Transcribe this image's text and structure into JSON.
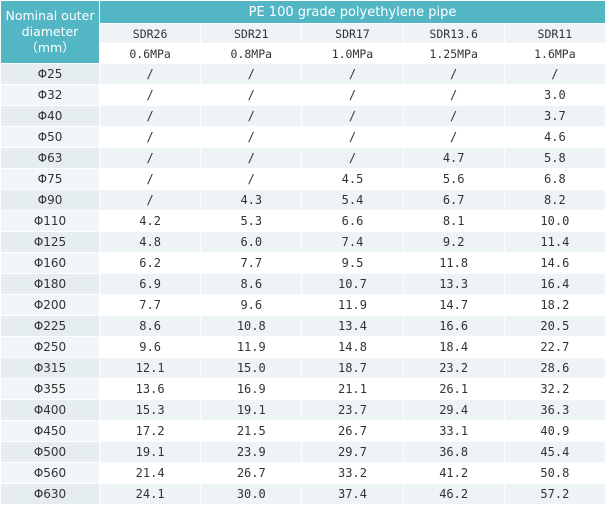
{
  "header": {
    "corner_label": "Nominal outer diameter（mm）",
    "group_label": "PE 100 grade polyethylene pipe",
    "sdr_labels": [
      "SDR26",
      "SDR21",
      "SDR17",
      "SDR13.6",
      "SDR11"
    ],
    "pressure_labels": [
      "0.6MPa",
      "0.8MPa",
      "1.0MPa",
      "1.25MPa",
      "1.6MPa"
    ]
  },
  "rows": [
    {
      "diameter": "Φ25",
      "values": [
        "/",
        "/",
        "/",
        "/",
        "/"
      ]
    },
    {
      "diameter": "Φ32",
      "values": [
        "/",
        "/",
        "/",
        "/",
        "3.0"
      ]
    },
    {
      "diameter": "Φ40",
      "values": [
        "/",
        "/",
        "/",
        "/",
        "3.7"
      ]
    },
    {
      "diameter": "Φ50",
      "values": [
        "/",
        "/",
        "/",
        "/",
        "4.6"
      ]
    },
    {
      "diameter": "Φ63",
      "values": [
        "/",
        "/",
        "/",
        "4.7",
        "5.8"
      ]
    },
    {
      "diameter": "Φ75",
      "values": [
        "/",
        "/",
        "4.5",
        "5.6",
        "6.8"
      ]
    },
    {
      "diameter": "Φ90",
      "values": [
        "/",
        "4.3",
        "5.4",
        "6.7",
        "8.2"
      ]
    },
    {
      "diameter": "Φ110",
      "values": [
        "4.2",
        "5.3",
        "6.6",
        "8.1",
        "10.0"
      ]
    },
    {
      "diameter": "Φ125",
      "values": [
        "4.8",
        "6.0",
        "7.4",
        "9.2",
        "11.4"
      ]
    },
    {
      "diameter": "Φ160",
      "values": [
        "6.2",
        "7.7",
        "9.5",
        "11.8",
        "14.6"
      ]
    },
    {
      "diameter": "Φ180",
      "values": [
        "6.9",
        "8.6",
        "10.7",
        "13.3",
        "16.4"
      ]
    },
    {
      "diameter": "Φ200",
      "values": [
        "7.7",
        "9.6",
        "11.9",
        "14.7",
        "18.2"
      ]
    },
    {
      "diameter": "Φ225",
      "values": [
        "8.6",
        "10.8",
        "13.4",
        "16.6",
        "20.5"
      ]
    },
    {
      "diameter": "Φ250",
      "values": [
        "9.6",
        "11.9",
        "14.8",
        "18.4",
        "22.7"
      ]
    },
    {
      "diameter": "Φ315",
      "values": [
        "12.1",
        "15.0",
        "18.7",
        "23.2",
        "28.6"
      ]
    },
    {
      "diameter": "Φ355",
      "values": [
        "13.6",
        "16.9",
        "21.1",
        "26.1",
        "32.2"
      ]
    },
    {
      "diameter": "Φ400",
      "values": [
        "15.3",
        "19.1",
        "23.7",
        "29.4",
        "36.3"
      ]
    },
    {
      "diameter": "Φ450",
      "values": [
        "17.2",
        "21.5",
        "26.7",
        "33.1",
        "40.9"
      ]
    },
    {
      "diameter": "Φ500",
      "values": [
        "19.1",
        "23.9",
        "29.7",
        "36.8",
        "45.4"
      ]
    },
    {
      "diameter": "Φ560",
      "values": [
        "21.4",
        "26.7",
        "33.2",
        "41.2",
        "50.8"
      ]
    },
    {
      "diameter": "Φ630",
      "values": [
        "24.1",
        "30.0",
        "37.4",
        "46.2",
        "57.2"
      ]
    }
  ],
  "colors": {
    "header_bg": "#52b6c5",
    "header_text": "#ffffff",
    "row_alt_bg": "#eef3f6",
    "text": "#333333"
  }
}
